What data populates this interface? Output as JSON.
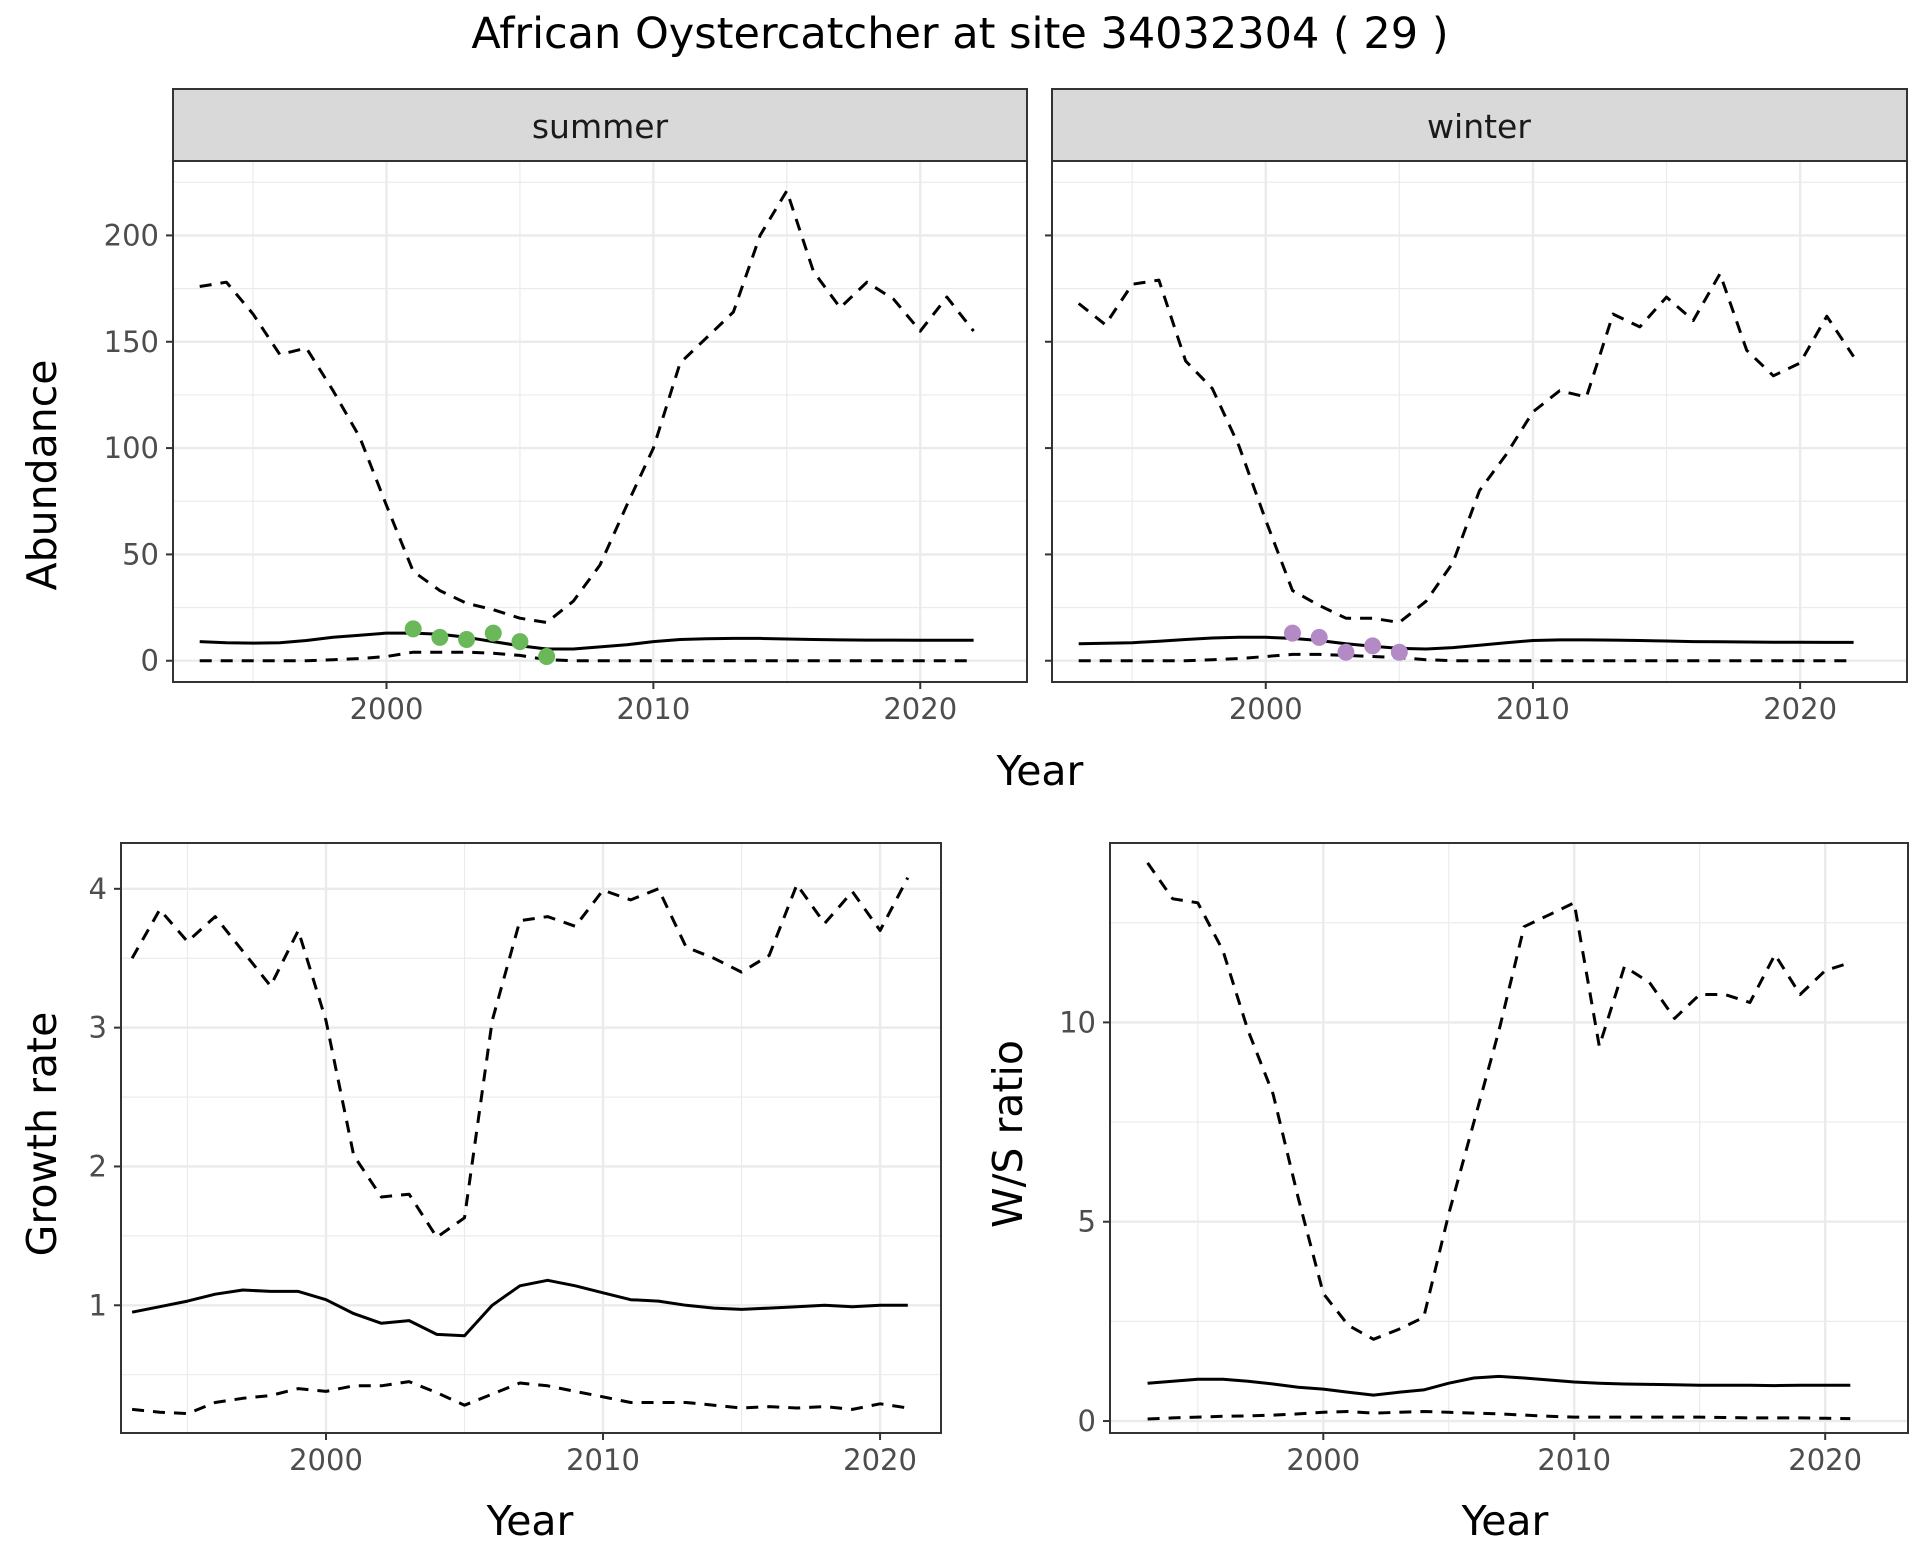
{
  "title": "African Oystercatcher at site 34032304 ( 29 )",
  "colors": {
    "summer_points": "#6ab85a",
    "winter_points": "#b38ac6",
    "line": "#000000",
    "grid": "#ebebeb",
    "strip_bg": "#d9d9d9"
  },
  "chart_data": [
    {
      "id": "abundance-summer",
      "type": "line",
      "facet": "summer",
      "xlabel": "Year",
      "ylabel": "Abundance",
      "xlim": [
        1992,
        2024
      ],
      "ylim": [
        -10,
        235
      ],
      "xticks": [
        2000,
        2010,
        2020
      ],
      "yticks": [
        0,
        50,
        100,
        150,
        200
      ],
      "grid": true,
      "series": [
        {
          "role": "upper",
          "style": "dashed",
          "x": [
            1993,
            1994,
            1995,
            1996,
            1997,
            1998,
            1999,
            2000,
            2001,
            2002,
            2003,
            2004,
            2005,
            2006,
            2007,
            2008,
            2009,
            2010,
            2011,
            2012,
            2013,
            2014,
            2015,
            2016,
            2017,
            2018,
            2019,
            2020,
            2021,
            2022
          ],
          "y": [
            176,
            178,
            163,
            144,
            147,
            127,
            105,
            73,
            42,
            33,
            27,
            24,
            20,
            18,
            28,
            45,
            73,
            100,
            140,
            152,
            164,
            200,
            221,
            183,
            166,
            178,
            170,
            155,
            171,
            155
          ]
        },
        {
          "role": "mean",
          "style": "solid",
          "x": [
            1993,
            1994,
            1995,
            1996,
            1997,
            1998,
            1999,
            2000,
            2001,
            2002,
            2003,
            2004,
            2005,
            2006,
            2007,
            2008,
            2009,
            2010,
            2011,
            2012,
            2013,
            2014,
            2015,
            2016,
            2017,
            2018,
            2019,
            2020,
            2021,
            2022
          ],
          "y": [
            9,
            8.5,
            8.3,
            8.5,
            9.5,
            11,
            12,
            13,
            13,
            12.5,
            11,
            9,
            7,
            5.5,
            5.5,
            6.5,
            7.5,
            9,
            10,
            10.3,
            10.5,
            10.5,
            10.2,
            10,
            9.8,
            9.7,
            9.7,
            9.6,
            9.6,
            9.6
          ]
        },
        {
          "role": "lower",
          "style": "dashed",
          "x": [
            1993,
            1994,
            1995,
            1996,
            1997,
            1998,
            1999,
            2000,
            2001,
            2002,
            2003,
            2004,
            2005,
            2006,
            2007,
            2008,
            2009,
            2010,
            2011,
            2012,
            2013,
            2014,
            2015,
            2016,
            2017,
            2018,
            2019,
            2020,
            2021,
            2022
          ],
          "y": [
            0,
            0,
            0,
            0,
            0,
            0.5,
            1,
            2,
            4,
            4,
            4,
            3.5,
            2.5,
            0.5,
            0,
            0,
            0,
            0,
            0,
            0,
            0,
            0,
            0,
            0,
            0,
            0,
            0,
            0,
            0,
            0
          ]
        }
      ],
      "points": {
        "x": [
          2001,
          2002,
          2003,
          2004,
          2005,
          2006
        ],
        "y": [
          15,
          11,
          10,
          13,
          9,
          2
        ]
      }
    },
    {
      "id": "abundance-winter",
      "type": "line",
      "facet": "winter",
      "xlabel": "Year",
      "ylabel": "Abundance",
      "xlim": [
        1992,
        2024
      ],
      "ylim": [
        -10,
        235
      ],
      "xticks": [
        2000,
        2010,
        2020
      ],
      "yticks": [
        0,
        50,
        100,
        150,
        200
      ],
      "grid": true,
      "series": [
        {
          "role": "upper",
          "style": "dashed",
          "x": [
            1993,
            1994,
            1995,
            1996,
            1997,
            1998,
            1999,
            2000,
            2001,
            2002,
            2003,
            2004,
            2005,
            2006,
            2007,
            2008,
            2009,
            2010,
            2011,
            2012,
            2013,
            2014,
            2015,
            2016,
            2017,
            2018,
            2019,
            2020,
            2021,
            2022
          ],
          "y": [
            168,
            158,
            177,
            179,
            141,
            128,
            101,
            66,
            33,
            26,
            20,
            20,
            18,
            28,
            46,
            80,
            97,
            117,
            127,
            124,
            163,
            157,
            171,
            160,
            182,
            146,
            134,
            140,
            162,
            143
          ]
        },
        {
          "role": "mean",
          "style": "solid",
          "x": [
            1993,
            1994,
            1995,
            1996,
            1997,
            1998,
            1999,
            2000,
            2001,
            2002,
            2003,
            2004,
            2005,
            2006,
            2007,
            2008,
            2009,
            2010,
            2011,
            2012,
            2013,
            2014,
            2015,
            2016,
            2017,
            2018,
            2019,
            2020,
            2021,
            2022
          ],
          "y": [
            8,
            8.2,
            8.5,
            9.2,
            10,
            10.7,
            11,
            11,
            10.5,
            9.5,
            8,
            6.8,
            5.8,
            5.5,
            6.2,
            7.3,
            8.5,
            9.5,
            9.8,
            9.8,
            9.7,
            9.5,
            9.3,
            9,
            8.9,
            8.8,
            8.7,
            8.7,
            8.6,
            8.6
          ]
        },
        {
          "role": "lower",
          "style": "dashed",
          "x": [
            1993,
            1994,
            1995,
            1996,
            1997,
            1998,
            1999,
            2000,
            2001,
            2002,
            2003,
            2004,
            2005,
            2006,
            2007,
            2008,
            2009,
            2010,
            2011,
            2012,
            2013,
            2014,
            2015,
            2016,
            2017,
            2018,
            2019,
            2020,
            2021,
            2022
          ],
          "y": [
            0,
            0,
            0,
            0,
            0,
            0.5,
            1,
            2,
            3,
            3,
            2.5,
            2,
            1.5,
            0.5,
            0,
            0,
            0,
            0,
            0,
            0,
            0,
            0,
            0,
            0,
            0,
            0,
            0,
            0,
            0,
            0
          ]
        }
      ],
      "points": {
        "x": [
          2001,
          2002,
          2003,
          2004,
          2005
        ],
        "y": [
          13,
          11,
          4,
          7,
          4
        ]
      }
    },
    {
      "id": "growth-rate",
      "type": "line",
      "xlabel": "Year",
      "ylabel": "Growth rate",
      "xlim": [
        1992.6,
        2022.2
      ],
      "ylim": [
        0.08,
        4.33
      ],
      "xticks": [
        2000,
        2010,
        2020
      ],
      "yticks": [
        1,
        2,
        3,
        4
      ],
      "grid": true,
      "series": [
        {
          "role": "upper",
          "style": "dashed",
          "x": [
            1993,
            1994,
            1995,
            1996,
            1997,
            1998,
            1999,
            2000,
            2001,
            2002,
            2003,
            2004,
            2005,
            2006,
            2007,
            2008,
            2009,
            2010,
            2011,
            2012,
            2013,
            2014,
            2015,
            2016,
            2017,
            2018,
            2019,
            2020,
            2021
          ],
          "y": [
            3.5,
            3.85,
            3.62,
            3.8,
            3.55,
            3.3,
            3.7,
            3.05,
            2.08,
            1.78,
            1.8,
            1.49,
            1.63,
            3.05,
            3.77,
            3.8,
            3.73,
            3.99,
            3.92,
            4.0,
            3.58,
            3.5,
            3.4,
            3.52,
            4.03,
            3.75,
            3.98,
            3.7,
            4.08
          ]
        },
        {
          "role": "mean",
          "style": "solid",
          "x": [
            1993,
            1994,
            1995,
            1996,
            1997,
            1998,
            1999,
            2000,
            2001,
            2002,
            2003,
            2004,
            2005,
            2006,
            2007,
            2008,
            2009,
            2010,
            2011,
            2012,
            2013,
            2014,
            2015,
            2016,
            2017,
            2018,
            2019,
            2020,
            2021
          ],
          "y": [
            0.95,
            0.99,
            1.03,
            1.08,
            1.11,
            1.1,
            1.1,
            1.04,
            0.94,
            0.87,
            0.89,
            0.79,
            0.78,
            1.0,
            1.14,
            1.18,
            1.14,
            1.09,
            1.04,
            1.03,
            1.0,
            0.98,
            0.97,
            0.98,
            0.99,
            1.0,
            0.99,
            1.0,
            1.0
          ]
        },
        {
          "role": "lower",
          "style": "dashed",
          "x": [
            1993,
            1994,
            1995,
            1996,
            1997,
            1998,
            1999,
            2000,
            2001,
            2002,
            2003,
            2004,
            2005,
            2006,
            2007,
            2008,
            2009,
            2010,
            2011,
            2012,
            2013,
            2014,
            2015,
            2016,
            2017,
            2018,
            2019,
            2020,
            2021
          ],
          "y": [
            0.25,
            0.23,
            0.22,
            0.3,
            0.33,
            0.35,
            0.4,
            0.38,
            0.42,
            0.42,
            0.45,
            0.37,
            0.28,
            0.36,
            0.44,
            0.42,
            0.38,
            0.34,
            0.3,
            0.3,
            0.3,
            0.28,
            0.26,
            0.27,
            0.26,
            0.27,
            0.25,
            0.29,
            0.26
          ]
        }
      ]
    },
    {
      "id": "ws-ratio",
      "type": "line",
      "xlabel": "Year",
      "ylabel": "W/S ratio",
      "xlim": [
        1991.5,
        2023.3
      ],
      "ylim": [
        -0.3,
        14.5
      ],
      "xticks": [
        2000,
        2010,
        2020
      ],
      "yticks": [
        0,
        5,
        10
      ],
      "grid": true,
      "series": [
        {
          "role": "upper",
          "style": "dashed",
          "x": [
            1993,
            1994,
            1995,
            1996,
            1997,
            1998,
            1999,
            2000,
            2001,
            2002,
            2003,
            2004,
            2005,
            2006,
            2007,
            2008,
            2009,
            2010,
            2011,
            2012,
            2013,
            2014,
            2015,
            2016,
            2017,
            2018,
            2019,
            2020,
            2021
          ],
          "y": [
            14,
            13.1,
            13.0,
            11.8,
            9.8,
            8.2,
            5.6,
            3.2,
            2.4,
            2.05,
            2.3,
            2.6,
            5.2,
            7.5,
            9.8,
            12.4,
            12.7,
            13.0,
            9.4,
            11.4,
            11.0,
            10.1,
            10.7,
            10.7,
            10.5,
            11.7,
            10.7,
            11.3,
            11.5
          ]
        },
        {
          "role": "mean",
          "style": "solid",
          "x": [
            1993,
            1994,
            1995,
            1996,
            1997,
            1998,
            1999,
            2000,
            2001,
            2002,
            2003,
            2004,
            2005,
            2006,
            2007,
            2008,
            2009,
            2010,
            2011,
            2012,
            2013,
            2014,
            2015,
            2016,
            2017,
            2018,
            2019,
            2020,
            2021
          ],
          "y": [
            0.95,
            1.0,
            1.05,
            1.05,
            1.0,
            0.93,
            0.85,
            0.8,
            0.72,
            0.65,
            0.72,
            0.78,
            0.95,
            1.08,
            1.12,
            1.08,
            1.03,
            0.98,
            0.95,
            0.93,
            0.92,
            0.91,
            0.9,
            0.9,
            0.9,
            0.89,
            0.9,
            0.9,
            0.9
          ]
        },
        {
          "role": "lower",
          "style": "dashed",
          "x": [
            1993,
            1994,
            1995,
            1996,
            1997,
            1998,
            1999,
            2000,
            2001,
            2002,
            2003,
            2004,
            2005,
            2006,
            2007,
            2008,
            2009,
            2010,
            2011,
            2012,
            2013,
            2014,
            2015,
            2016,
            2017,
            2018,
            2019,
            2020,
            2021
          ],
          "y": [
            0.05,
            0.08,
            0.1,
            0.12,
            0.13,
            0.15,
            0.18,
            0.22,
            0.24,
            0.2,
            0.22,
            0.24,
            0.22,
            0.2,
            0.18,
            0.15,
            0.12,
            0.1,
            0.1,
            0.1,
            0.1,
            0.1,
            0.1,
            0.09,
            0.08,
            0.08,
            0.08,
            0.07,
            0.06
          ]
        }
      ]
    }
  ]
}
